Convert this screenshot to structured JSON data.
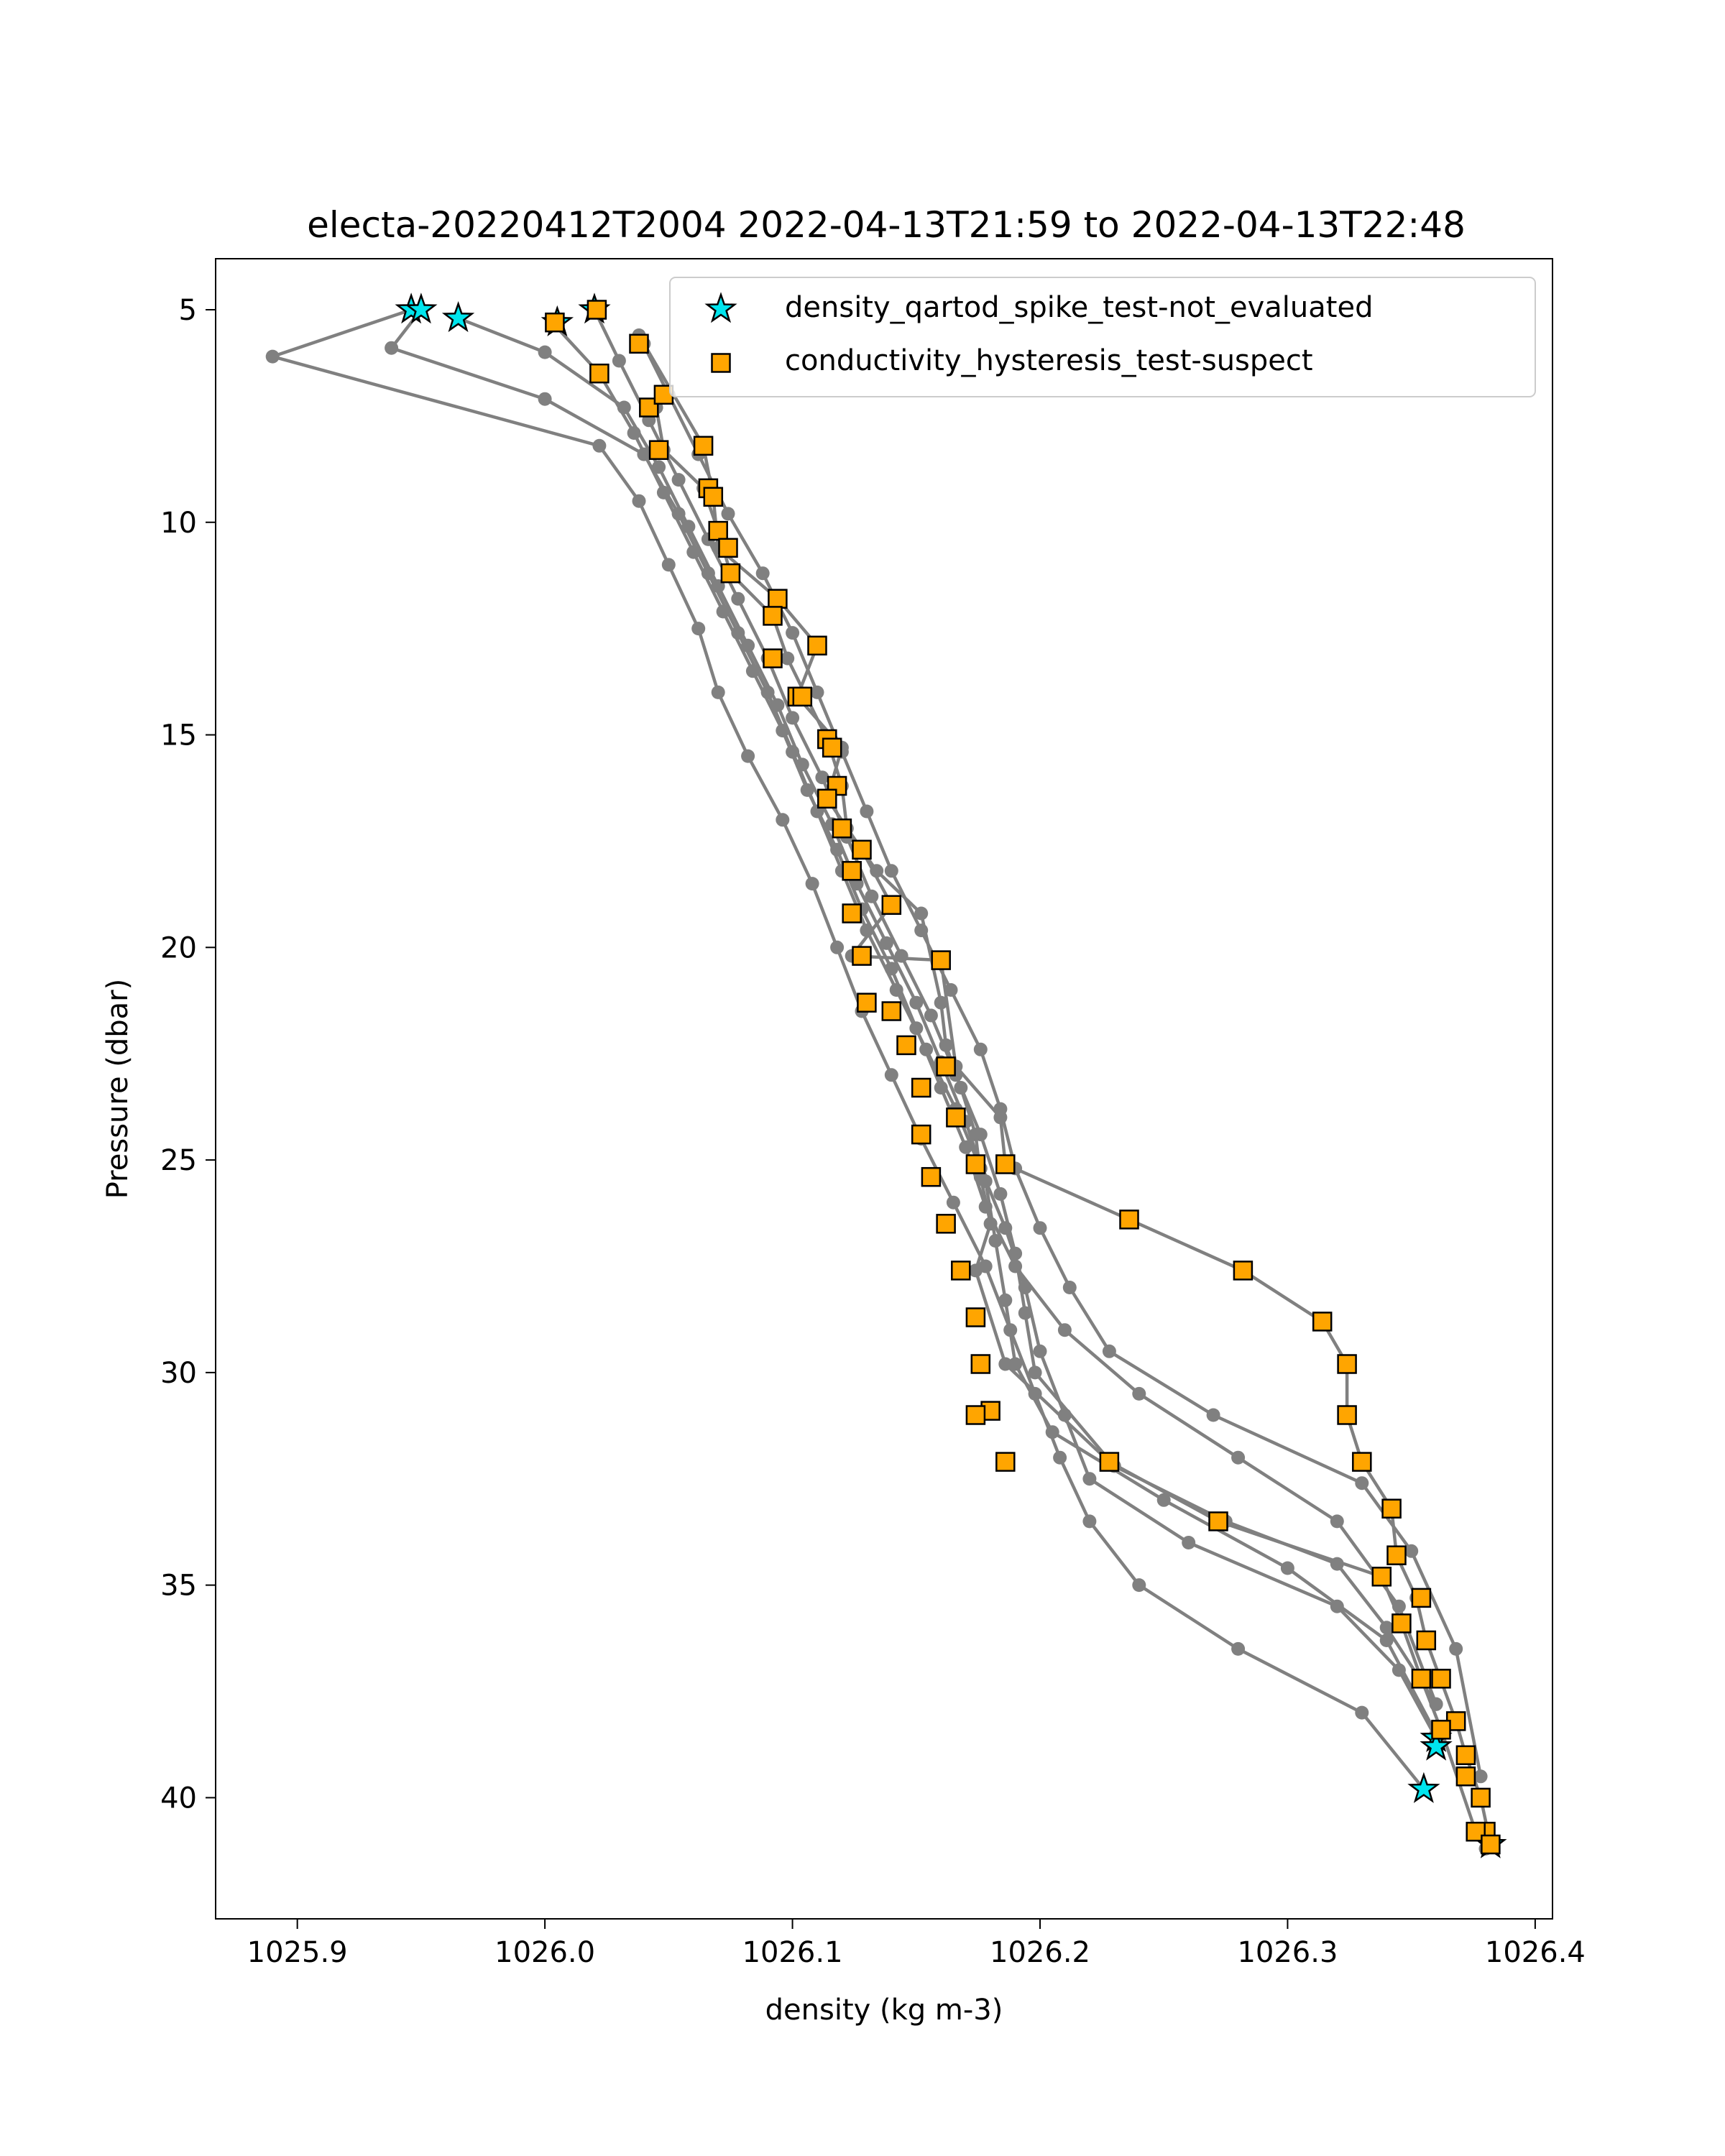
{
  "chart_data": {
    "type": "scatter",
    "title": "electa-20220412T2004 2022-04-13T21:59 to 2022-04-13T22:48",
    "xlabel": "density (kg m-3)",
    "ylabel": "Pressure (dbar)",
    "xlim": [
      1025.867,
      1026.407
    ],
    "ylim": [
      42.85,
      3.8
    ],
    "y_inverted": true,
    "grid": false,
    "legend_position": "top-right",
    "xticks": [
      1025.9,
      1026.0,
      1026.1,
      1026.2,
      1026.3,
      1026.4
    ],
    "xtick_labels": [
      "1025.9",
      "1026.0",
      "1026.1",
      "1026.2",
      "1026.3",
      "1026.4"
    ],
    "yticks": [
      5,
      10,
      15,
      20,
      25,
      30,
      35,
      40
    ],
    "ytick_labels": [
      "5",
      "10",
      "15",
      "20",
      "25",
      "30",
      "35",
      "40"
    ],
    "colors": {
      "profile": "#808080",
      "spike": "#00e5ee",
      "hysteresis": "#ffa500"
    },
    "profiles": [
      {
        "x": [
          1025.946,
          1025.89,
          1026.022,
          1026.038,
          1026.05,
          1026.062,
          1026.07,
          1026.082,
          1026.096,
          1026.108,
          1026.118,
          1026.128,
          1026.14,
          1026.152,
          1026.165,
          1026.178,
          1026.188,
          1026.198,
          1026.208,
          1026.22,
          1026.24,
          1026.28,
          1026.33,
          1026.355
        ],
        "y": [
          5.0,
          6.1,
          8.2,
          9.5,
          11.0,
          12.5,
          14.0,
          15.5,
          17.0,
          18.5,
          20.0,
          21.5,
          23.0,
          24.5,
          26.0,
          27.5,
          29.0,
          30.5,
          32.0,
          33.5,
          35.0,
          36.5,
          38.0,
          39.8
        ]
      },
      {
        "x": [
          1025.95,
          1025.938,
          1026.0,
          1026.04,
          1026.054,
          1026.066,
          1026.078,
          1026.09,
          1026.1,
          1026.11,
          1026.12,
          1026.13,
          1026.142,
          1026.154,
          1026.166,
          1026.176,
          1026.186,
          1026.194,
          1026.2,
          1026.21,
          1026.22,
          1026.26,
          1026.32,
          1026.345,
          1026.36
        ],
        "y": [
          5.0,
          5.9,
          7.1,
          8.4,
          9.8,
          11.2,
          12.6,
          14.0,
          15.4,
          16.8,
          18.2,
          19.6,
          21.0,
          22.4,
          23.8,
          25.2,
          26.6,
          28.0,
          29.5,
          31.0,
          32.5,
          34.0,
          35.5,
          37.0,
          38.6
        ]
      },
      {
        "x": [
          1025.965,
          1026.0,
          1026.032,
          1026.046,
          1026.058,
          1026.07,
          1026.082,
          1026.094,
          1026.104,
          1026.116,
          1026.126,
          1026.138,
          1026.15,
          1026.16,
          1026.17,
          1026.178,
          1026.182,
          1026.186,
          1026.19,
          1026.205,
          1026.25,
          1026.3,
          1026.34,
          1026.36
        ],
        "y": [
          5.2,
          6.0,
          7.3,
          8.7,
          10.1,
          11.5,
          12.9,
          14.3,
          15.7,
          17.1,
          18.5,
          19.9,
          21.3,
          22.7,
          24.1,
          25.5,
          26.9,
          28.3,
          29.8,
          31.4,
          33.0,
          34.6,
          36.3,
          38.5
        ]
      },
      {
        "x": [
          1026.003,
          1026.022,
          1026.036,
          1026.048,
          1026.06,
          1026.072,
          1026.084,
          1026.096,
          1026.106,
          1026.118,
          1026.128,
          1026.14,
          1026.15,
          1026.16,
          1026.17,
          1026.178,
          1026.19,
          1026.21,
          1026.24,
          1026.28,
          1026.32,
          1026.345,
          1026.36
        ],
        "y": [
          5.3,
          6.5,
          7.9,
          9.3,
          10.7,
          12.1,
          13.5,
          14.9,
          16.3,
          17.7,
          19.1,
          20.5,
          21.9,
          23.3,
          24.7,
          26.1,
          27.5,
          29.0,
          30.5,
          32.0,
          33.5,
          35.5,
          37.8
        ]
      },
      {
        "x": [
          1026.02,
          1026.03,
          1026.042,
          1026.054,
          1026.066,
          1026.078,
          1026.09,
          1026.1,
          1026.112,
          1026.122,
          1026.132,
          1026.144,
          1026.156,
          1026.166,
          1026.176,
          1026.184,
          1026.19,
          1026.194,
          1026.198,
          1026.23,
          1026.275,
          1026.32,
          1026.34,
          1026.36
        ],
        "y": [
          5.0,
          6.2,
          7.6,
          9.0,
          10.4,
          11.8,
          13.2,
          14.6,
          16.0,
          17.4,
          18.8,
          20.2,
          21.6,
          23.0,
          24.4,
          25.8,
          27.2,
          28.6,
          30.0,
          32.2,
          33.5,
          34.5,
          36.0,
          37.8
        ]
      },
      {
        "x": [
          1026.038,
          1026.05,
          1026.062,
          1026.074,
          1026.088,
          1026.1,
          1026.11,
          1026.12,
          1026.13,
          1026.14,
          1026.152,
          1026.164,
          1026.176,
          1026.184,
          1026.19,
          1026.2,
          1026.212,
          1026.228,
          1026.27,
          1026.33,
          1026.35,
          1026.368,
          1026.378
        ],
        "y": [
          5.6,
          7.0,
          8.4,
          9.8,
          11.2,
          12.6,
          14.0,
          15.4,
          16.8,
          18.2,
          19.6,
          21.0,
          22.4,
          23.8,
          25.2,
          26.6,
          28.0,
          29.5,
          31.0,
          32.6,
          34.2,
          36.5,
          39.5
        ]
      },
      {
        "x": [
          1026.04,
          1026.064,
          1026.068,
          1026.07,
          1026.094,
          1026.11,
          1026.102,
          1026.12,
          1026.114,
          1026.128,
          1026.14,
          1026.124,
          1026.16,
          1026.166,
          1026.184,
          1026.186,
          1026.236,
          1026.282,
          1026.314,
          1026.324,
          1026.324,
          1026.33,
          1026.342,
          1026.344,
          1026.352,
          1026.356,
          1026.368,
          1026.372,
          1026.378,
          1026.382
        ],
        "y": [
          5.8,
          8.2,
          9.4,
          10.6,
          11.8,
          12.9,
          14.1,
          15.3,
          16.5,
          17.7,
          19.0,
          20.2,
          20.3,
          22.8,
          24.0,
          25.1,
          26.4,
          27.6,
          28.8,
          29.8,
          31.0,
          32.1,
          33.2,
          34.3,
          35.3,
          36.3,
          38.2,
          39.0,
          40.0,
          41.1
        ]
      },
      {
        "x": [
          1026.045,
          1026.048,
          1026.064,
          1026.07,
          1026.075,
          1026.092,
          1026.098,
          1026.114,
          1026.12,
          1026.122,
          1026.134,
          1026.152,
          1026.16,
          1026.162,
          1026.168,
          1026.174,
          1026.176,
          1026.18,
          1026.174,
          1026.186,
          1026.228,
          1026.272,
          1026.338,
          1026.346,
          1026.354,
          1026.362,
          1026.376,
          1026.38
        ],
        "y": [
          7.3,
          8.3,
          9.2,
          10.2,
          11.2,
          12.2,
          13.2,
          15.1,
          16.2,
          17.2,
          18.2,
          19.2,
          21.3,
          22.3,
          23.3,
          24.4,
          25.4,
          26.5,
          27.6,
          29.8,
          32.1,
          33.5,
          34.8,
          35.9,
          37.2,
          38.4,
          40.8,
          41.2
        ]
      }
    ],
    "series": [
      {
        "name": "density_qartod_spike_test-not_evaluated",
        "marker": "star",
        "color": "#00e5ee",
        "x": [
          1025.946,
          1025.95,
          1025.965,
          1026.005,
          1026.02,
          1026.36,
          1026.36,
          1026.355,
          1026.382
        ],
        "y": [
          5.0,
          5.0,
          5.2,
          5.3,
          5.0,
          38.6,
          38.8,
          39.8,
          41.1
        ]
      },
      {
        "name": "conductivity_hysteresis_test-suspect",
        "marker": "square",
        "color": "#ffa500",
        "x": [
          1026.004,
          1026.021,
          1026.038,
          1026.022,
          1026.042,
          1026.048,
          1026.064,
          1026.046,
          1026.066,
          1026.068,
          1026.07,
          1026.074,
          1026.075,
          1026.094,
          1026.092,
          1026.11,
          1026.092,
          1026.102,
          1026.104,
          1026.114,
          1026.116,
          1026.118,
          1026.114,
          1026.12,
          1026.128,
          1026.124,
          1026.14,
          1026.124,
          1026.128,
          1026.16,
          1026.13,
          1026.14,
          1026.146,
          1026.162,
          1026.152,
          1026.166,
          1026.152,
          1026.174,
          1026.156,
          1026.186,
          1026.162,
          1026.168,
          1026.236,
          1026.174,
          1026.282,
          1026.176,
          1026.314,
          1026.18,
          1026.324,
          1026.186,
          1026.324,
          1026.174,
          1026.33,
          1026.228,
          1026.342,
          1026.272,
          1026.344,
          1026.338,
          1026.354,
          1026.346,
          1026.356,
          1026.362,
          1026.354,
          1026.368,
          1026.362,
          1026.372,
          1026.372,
          1026.378,
          1026.38,
          1026.376,
          1026.382
        ],
        "y": [
          5.3,
          5.0,
          5.8,
          6.5,
          7.3,
          7.0,
          8.2,
          8.3,
          9.2,
          9.4,
          10.2,
          10.6,
          11.2,
          11.8,
          12.2,
          12.9,
          13.2,
          14.1,
          14.1,
          15.1,
          15.3,
          16.2,
          16.5,
          17.2,
          17.7,
          18.2,
          19.0,
          19.2,
          20.2,
          20.3,
          21.3,
          21.5,
          22.3,
          22.8,
          23.3,
          24.0,
          24.4,
          25.1,
          25.4,
          25.1,
          26.5,
          27.6,
          26.4,
          28.7,
          27.6,
          29.8,
          28.8,
          30.9,
          29.8,
          32.1,
          31.0,
          31.0,
          32.1,
          32.1,
          33.2,
          33.5,
          34.3,
          34.8,
          35.3,
          35.9,
          36.3,
          37.2,
          37.2,
          38.2,
          38.4,
          39.0,
          39.5,
          40.0,
          40.8,
          40.8,
          41.1
        ]
      }
    ]
  }
}
